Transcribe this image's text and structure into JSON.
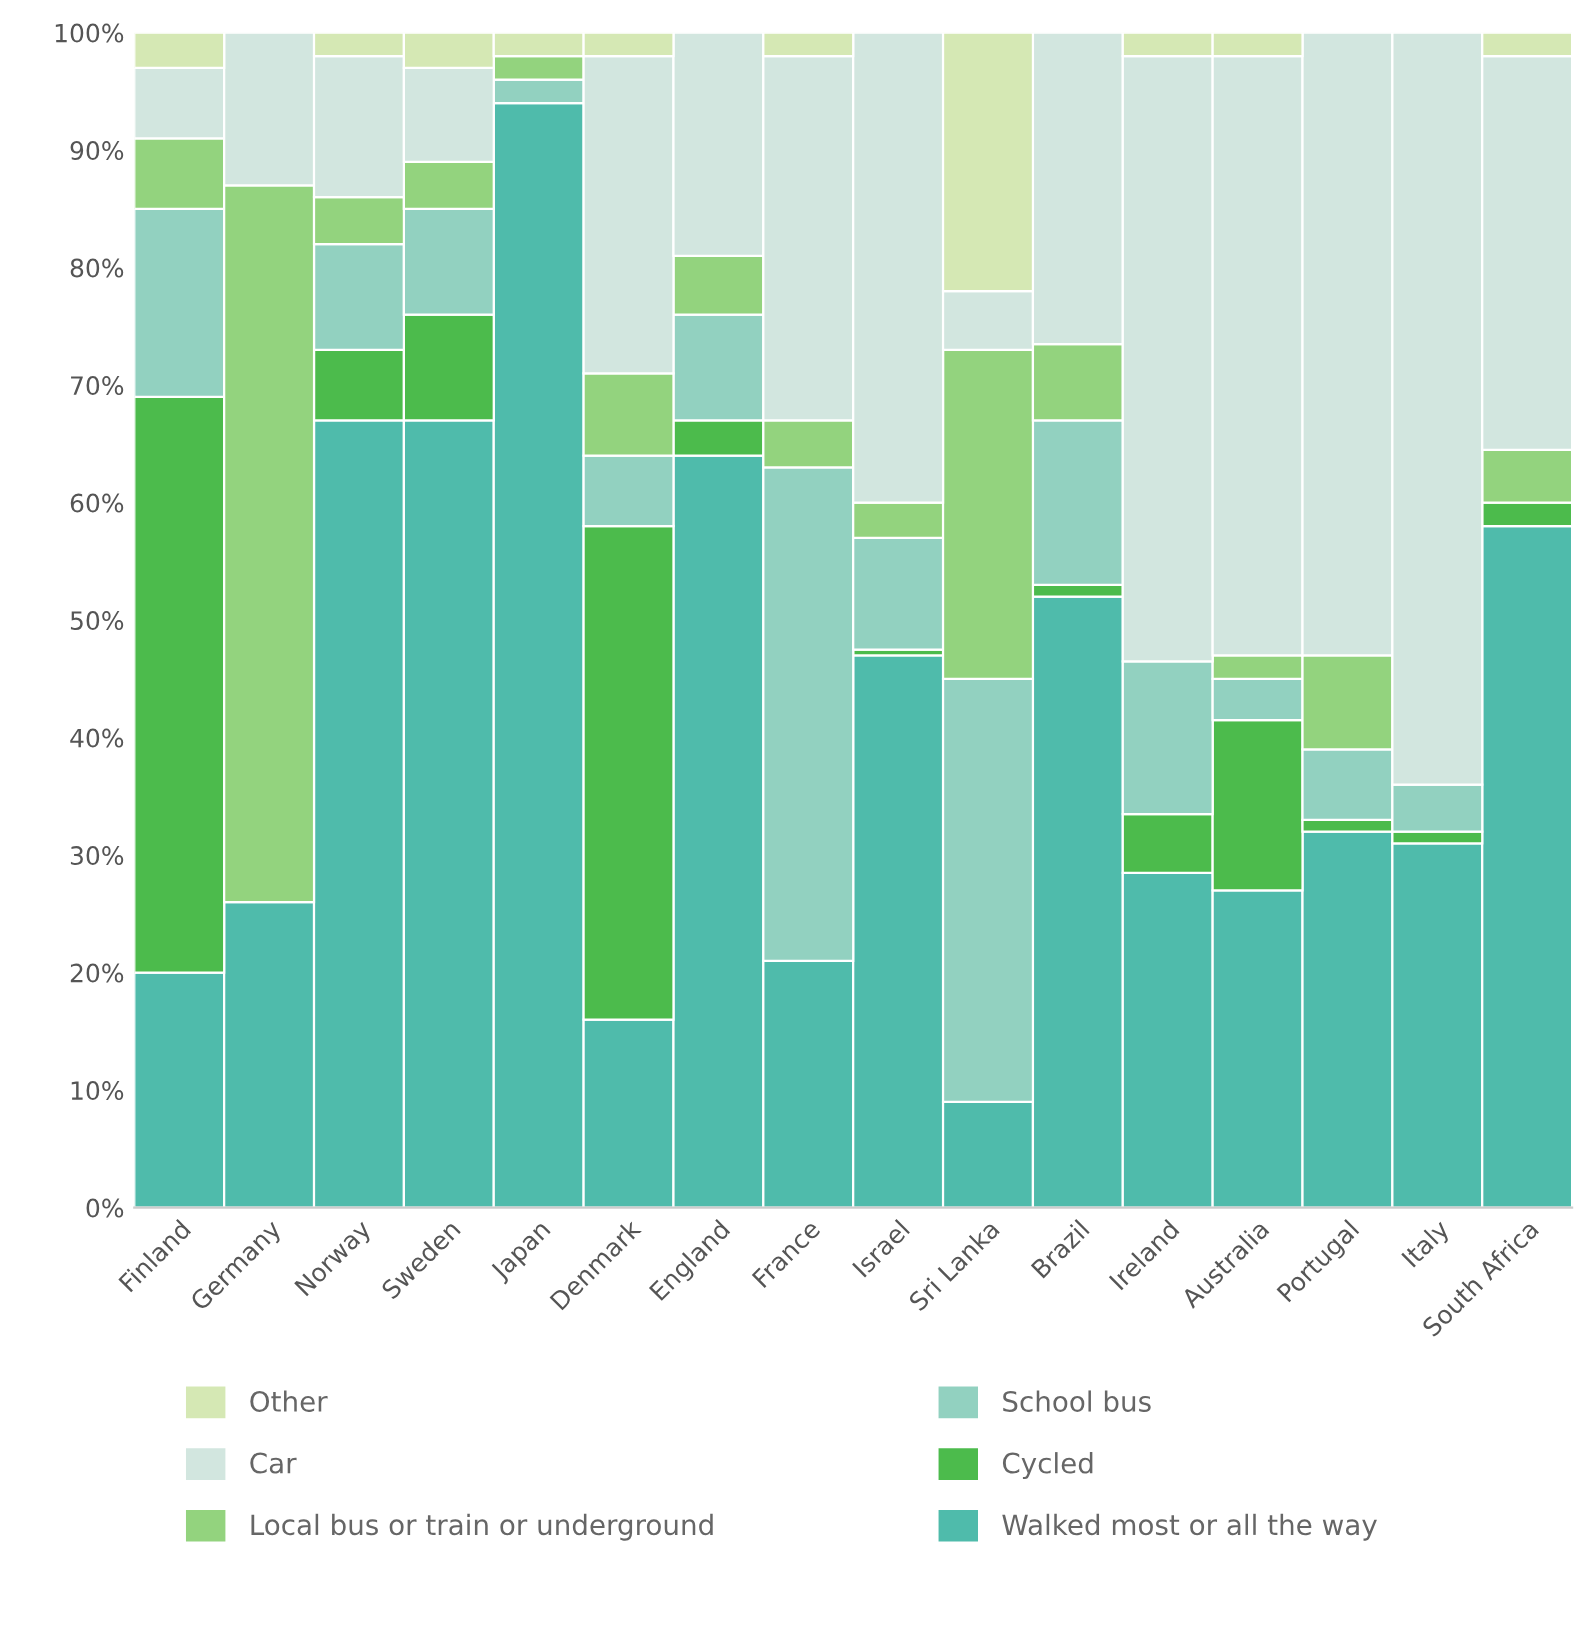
{
  "chart_data": {
    "type": "bar",
    "stacked": true,
    "categories": [
      "Finland",
      "Germany",
      "Norway",
      "Sweden",
      "Japan",
      "Denmark",
      "England",
      "France",
      "Israel",
      "Sri Lanka",
      "Brazil",
      "Ireland",
      "Australia",
      "Portugal",
      "Italy",
      "South Africa"
    ],
    "series": [
      {
        "name": "Walked most or all the way",
        "color": "#4fbbab",
        "values": [
          20,
          26,
          67,
          67,
          94,
          16,
          64,
          21,
          47,
          9,
          52,
          28.5,
          27,
          32,
          31,
          58
        ]
      },
      {
        "name": "Cycled",
        "color": "#4cbb4c",
        "values": [
          49,
          0,
          6,
          9,
          0,
          42,
          3,
          0,
          0.5,
          0,
          1,
          5,
          14.5,
          1,
          1,
          2
        ]
      },
      {
        "name": "School bus",
        "color": "#92d1c0",
        "values": [
          16,
          0,
          9,
          9,
          2,
          6,
          9,
          42,
          9.5,
          36,
          14,
          13,
          3.5,
          6,
          4,
          0
        ]
      },
      {
        "name": "Local bus or train or underground",
        "color": "#93d37e",
        "values": [
          6,
          61,
          4,
          4,
          2,
          7,
          5,
          4,
          3,
          28,
          6.5,
          0,
          2,
          8,
          0,
          4.5
        ]
      },
      {
        "name": "Car",
        "color": "#d2e6df",
        "values": [
          6,
          13,
          12,
          8,
          0,
          27,
          19,
          31,
          40,
          5,
          26.5,
          51.5,
          51,
          53,
          64,
          33.5
        ]
      },
      {
        "name": "Other",
        "color": "#d5e8b4",
        "values": [
          3,
          0,
          2,
          3,
          2,
          2,
          0,
          2,
          0,
          22,
          0,
          2,
          2,
          0,
          0,
          2
        ]
      }
    ],
    "ylim": [
      0,
      100
    ],
    "yticks": [
      {
        "value": 0,
        "label": "0%"
      },
      {
        "value": 10,
        "label": "10%"
      },
      {
        "value": 20,
        "label": "20%"
      },
      {
        "value": 30,
        "label": "30%"
      },
      {
        "value": 40,
        "label": "40%"
      },
      {
        "value": 50,
        "label": "50%"
      },
      {
        "value": 60,
        "label": "60%"
      },
      {
        "value": 70,
        "label": "70%"
      },
      {
        "value": 80,
        "label": "80%"
      },
      {
        "value": 90,
        "label": "90%"
      },
      {
        "value": 100,
        "label": "100%"
      }
    ],
    "grid": false,
    "legend": "bottom"
  }
}
